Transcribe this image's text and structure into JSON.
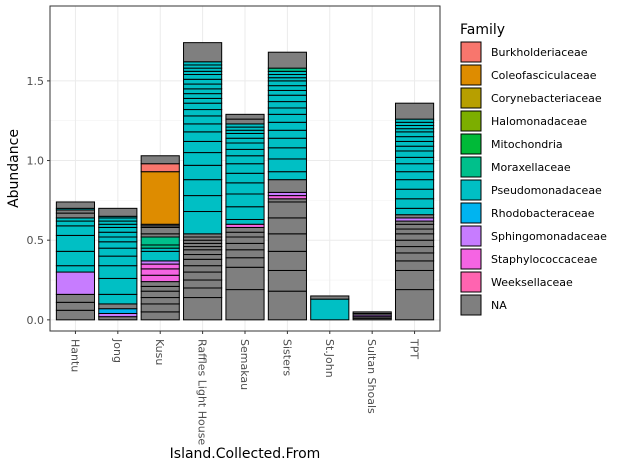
{
  "chart_data": {
    "type": "bar",
    "stacked": true,
    "xlabel": "Island.Collected.From",
    "ylabel": "Abundance",
    "ylim": [
      -0.07,
      1.97
    ],
    "yticks": [
      0.0,
      0.5,
      1.0,
      1.5
    ],
    "ytick_labels": [
      "0.0",
      "0.5",
      "1.0",
      "1.5"
    ],
    "grid": true,
    "legend_position": "right",
    "categories": [
      "Hantu",
      "Jong",
      "Kusu",
      "Raffles Light House",
      "Semakau",
      "Sisters",
      "St.John",
      "Sultan Shoals",
      "TPT"
    ],
    "legend": {
      "title": "Family",
      "entries": [
        {
          "name": "Burkholderiaceae",
          "color": "#F8766D"
        },
        {
          "name": "Coleofasciculaceae",
          "color": "#DE8C00"
        },
        {
          "name": "Corynebacteriaceae",
          "color": "#B79F00"
        },
        {
          "name": "Halomonadaceae",
          "color": "#7CAE00"
        },
        {
          "name": "Mitochondria",
          "color": "#00BA38"
        },
        {
          "name": "Moraxellaceae",
          "color": "#00C08B"
        },
        {
          "name": "Pseudomonadaceae",
          "color": "#00BFC4"
        },
        {
          "name": "Rhodobacteraceae",
          "color": "#00B4F0"
        },
        {
          "name": "Sphingomonadaceae",
          "color": "#C77CFF"
        },
        {
          "name": "Staphylococcaceae",
          "color": "#F564E3"
        },
        {
          "name": "Weeksellaceae",
          "color": "#FF64B0"
        },
        {
          "name": "NA",
          "color": "#7F7F7F"
        }
      ]
    },
    "bars": [
      {
        "category": "Hantu",
        "segments": [
          {
            "family": "NA",
            "values": [
              0.06,
              0.05,
              0.05
            ]
          },
          {
            "family": "Sphingomonadaceae",
            "values": [
              0.14
            ]
          },
          {
            "family": "Pseudomonadaceae",
            "values": [
              0.04,
              0.09,
              0.1,
              0.06,
              0.03,
              0.02
            ]
          },
          {
            "family": "NA",
            "values": [
              0.03,
              0.02
            ]
          },
          {
            "family": "Pseudomonadaceae",
            "values": [
              0.01
            ]
          },
          {
            "family": "NA",
            "values": [
              0.04
            ]
          }
        ]
      },
      {
        "category": "Jong",
        "segments": [
          {
            "family": "NA",
            "values": [
              0.02
            ]
          },
          {
            "family": "Sphingomonadaceae",
            "values": [
              0.02
            ]
          },
          {
            "family": "Rhodobacteraceae",
            "values": [
              0.03
            ]
          },
          {
            "family": "NA",
            "values": [
              0.03
            ]
          },
          {
            "family": "Pseudomonadaceae",
            "values": [
              0.06,
              0.1,
              0.08,
              0.06,
              0.05,
              0.04,
              0.03,
              0.03,
              0.03,
              0.02,
              0.02,
              0.02,
              0.01
            ]
          },
          {
            "family": "NA",
            "values": [
              0.05
            ]
          }
        ]
      },
      {
        "category": "Kusu",
        "segments": [
          {
            "family": "NA",
            "values": [
              0.05,
              0.05,
              0.04,
              0.04,
              0.03,
              0.03
            ]
          },
          {
            "family": "Staphylococcaceae",
            "values": [
              0.04,
              0.04,
              0.03
            ]
          },
          {
            "family": "Sphingomonadaceae",
            "values": [
              0.02
            ]
          },
          {
            "family": "Pseudomonadaceae",
            "values": [
              0.06,
              0.02
            ]
          },
          {
            "family": "Moraxellaceae",
            "values": [
              0.02,
              0.05
            ]
          },
          {
            "family": "NA",
            "values": [
              0.02,
              0.04,
              0.01,
              0.01
            ]
          },
          {
            "family": "Coleofasciculaceae",
            "values": [
              0.33
            ]
          },
          {
            "family": "Burkholderiaceae",
            "values": [
              0.05
            ]
          },
          {
            "family": "NA",
            "values": [
              0.05
            ]
          }
        ]
      },
      {
        "category": "Raffles Light House",
        "segments": [
          {
            "family": "NA",
            "values": [
              0.14,
              0.06,
              0.05,
              0.05,
              0.04,
              0.04,
              0.03,
              0.03,
              0.02,
              0.02,
              0.02,
              0.02,
              0.02
            ]
          },
          {
            "family": "Pseudomonadaceae",
            "values": [
              0.14,
              0.1,
              0.1,
              0.09,
              0.08,
              0.07,
              0.06,
              0.05,
              0.05,
              0.04,
              0.04,
              0.03,
              0.03,
              0.03,
              0.03,
              0.03,
              0.03,
              0.02,
              0.02,
              0.02,
              0.02
            ]
          },
          {
            "family": "NA",
            "values": [
              0.12
            ]
          }
        ]
      },
      {
        "category": "Semakau",
        "segments": [
          {
            "family": "NA",
            "values": [
              0.19,
              0.14,
              0.06,
              0.05,
              0.04,
              0.04,
              0.03,
              0.03
            ]
          },
          {
            "family": "Staphylococcaceae",
            "values": [
              0.02
            ]
          },
          {
            "family": "Pseudomonadaceae",
            "values": [
              0.03,
              0.08,
              0.08,
              0.07,
              0.06,
              0.06,
              0.05,
              0.04,
              0.04,
              0.03,
              0.03,
              0.02,
              0.02,
              0.02
            ]
          },
          {
            "family": "NA",
            "values": [
              0.03,
              0.03
            ]
          }
        ]
      },
      {
        "category": "Sisters",
        "segments": [
          {
            "family": "NA",
            "values": [
              0.18,
              0.13,
              0.12,
              0.11,
              0.1,
              0.1,
              0.02
            ]
          },
          {
            "family": "Staphylococcaceae",
            "values": [
              0.02
            ]
          },
          {
            "family": "Sphingomonadaceae",
            "values": [
              0.02
            ]
          },
          {
            "family": "NA",
            "values": [
              0.08
            ]
          },
          {
            "family": "Pseudomonadaceae",
            "values": [
              0.05,
              0.08,
              0.07,
              0.06,
              0.05,
              0.05,
              0.05,
              0.04,
              0.04,
              0.04,
              0.03,
              0.03,
              0.03,
              0.02,
              0.02,
              0.02
            ]
          },
          {
            "family": "Moraxellaceae",
            "values": [
              0.02
            ]
          },
          {
            "family": "NA",
            "values": [
              0.1
            ]
          }
        ]
      },
      {
        "category": "St.John",
        "segments": [
          {
            "family": "Pseudomonadaceae",
            "values": [
              0.13
            ]
          },
          {
            "family": "NA",
            "values": [
              0.02
            ]
          }
        ]
      },
      {
        "category": "Sultan Shoals",
        "segments": [
          {
            "family": "NA",
            "values": [
              0.01,
              0.01
            ]
          },
          {
            "family": "Sphingomonadaceae",
            "values": [
              0.01
            ]
          },
          {
            "family": "NA",
            "values": [
              0.01,
              0.01
            ]
          }
        ]
      },
      {
        "category": "TPT",
        "segments": [
          {
            "family": "NA",
            "values": [
              0.19,
              0.12,
              0.06,
              0.05,
              0.04,
              0.04,
              0.04,
              0.03,
              0.03,
              0.02
            ]
          },
          {
            "family": "Sphingomonadaceae",
            "values": [
              0.02
            ]
          },
          {
            "family": "NA",
            "values": [
              0.02
            ]
          },
          {
            "family": "Pseudomonadaceae",
            "values": [
              0.04,
              0.06,
              0.06,
              0.06,
              0.05,
              0.05,
              0.04,
              0.04,
              0.03,
              0.03,
              0.03,
              0.03,
              0.02,
              0.02,
              0.02,
              0.02
            ]
          },
          {
            "family": "NA",
            "values": [
              0.1
            ]
          }
        ]
      }
    ]
  }
}
